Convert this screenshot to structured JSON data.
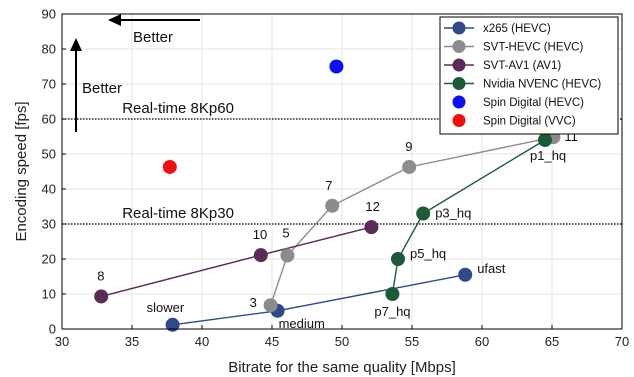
{
  "chart_data": {
    "type": "scatter",
    "xlabel": "Bitrate for the same quality [Mbps]",
    "ylabel": "Encoding speed [fps]",
    "xlim": [
      30,
      70
    ],
    "ylim": [
      0,
      90
    ],
    "xticks": [
      30,
      35,
      40,
      45,
      50,
      55,
      60,
      65,
      70
    ],
    "yticks": [
      0,
      10,
      20,
      30,
      40,
      50,
      60,
      70,
      80,
      90
    ],
    "grid": true,
    "legend_position": "top-right",
    "series": [
      {
        "name": "x265 (HEVC)",
        "color": "#2f4a87",
        "line": true,
        "points": [
          {
            "x": 37.9,
            "y": 1.2,
            "label": "slower"
          },
          {
            "x": 45.4,
            "y": 5.2,
            "label": "medium"
          },
          {
            "x": 58.8,
            "y": 15.5,
            "label": "ufast"
          }
        ]
      },
      {
        "name": "SVT-HEVC (HEVC)",
        "color": "#8c8c8c",
        "line": true,
        "points": [
          {
            "x": 44.9,
            "y": 6.8,
            "label": "3"
          },
          {
            "x": 46.1,
            "y": 21.0,
            "label": "5"
          },
          {
            "x": 49.3,
            "y": 35.2,
            "label": "7"
          },
          {
            "x": 54.8,
            "y": 46.3,
            "label": "9"
          },
          {
            "x": 65.1,
            "y": 54.8,
            "label": "11"
          }
        ]
      },
      {
        "name": "SVT-AV1 (AV1)",
        "color": "#5c2a57",
        "line": true,
        "points": [
          {
            "x": 32.8,
            "y": 9.3,
            "label": "8"
          },
          {
            "x": 44.2,
            "y": 21.1,
            "label": "10"
          },
          {
            "x": 52.1,
            "y": 29.1,
            "label": "12"
          }
        ]
      },
      {
        "name": "Nvidia NVENC (HEVC)",
        "color": "#1d5a3a",
        "line": true,
        "points": [
          {
            "x": 53.6,
            "y": 10.0,
            "label": "p7_hq"
          },
          {
            "x": 54.0,
            "y": 20.0,
            "label": "p5_hq"
          },
          {
            "x": 55.8,
            "y": 33.0,
            "label": "p3_hq"
          },
          {
            "x": 64.5,
            "y": 54.0,
            "label": "p1_hq"
          }
        ]
      },
      {
        "name": "Spin Digital (HEVC)",
        "color": "#1010ee",
        "line": false,
        "points": [
          {
            "x": 49.6,
            "y": 75.0
          }
        ]
      },
      {
        "name": "Spin Digital (VVC)",
        "color": "#ee1010",
        "line": false,
        "points": [
          {
            "x": 37.7,
            "y": 46.3
          }
        ]
      }
    ],
    "reference_lines": [
      {
        "y": 60,
        "label": "Real-time 8Kp60"
      },
      {
        "y": 30,
        "label": "Real-time 8Kp30"
      }
    ],
    "better_labels": {
      "horizontal": "Better",
      "vertical": "Better"
    }
  }
}
